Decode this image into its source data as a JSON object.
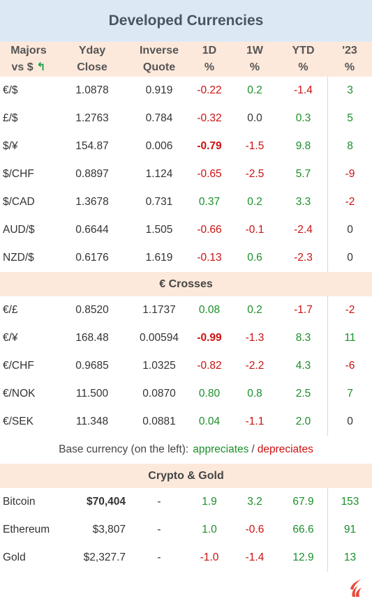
{
  "title": "Developed Currencies",
  "header": {
    "majors_line1": "Majors",
    "majors_line2": "vs $",
    "majors_arrow": "↰",
    "yday_line1": "Yday",
    "yday_line2": "Close",
    "inverse_line1": "Inverse",
    "inverse_line2": "Quote",
    "d1_line1": "1D",
    "w1_line1": "1W",
    "ytd_line1": "YTD",
    "y23_line1": "'23",
    "pct": "%"
  },
  "majors": [
    {
      "pair": "€/$",
      "close": "1.0878",
      "inverse": "0.919",
      "d1": "-0.22",
      "w1": "0.2",
      "ytd": "-1.4",
      "y23": "3"
    },
    {
      "pair": "£/$",
      "close": "1.2763",
      "inverse": "0.784",
      "d1": "-0.32",
      "w1": "0.0",
      "ytd": "0.3",
      "y23": "5"
    },
    {
      "pair": "$/¥",
      "close": "154.87",
      "inverse": "0.006",
      "d1": "-0.79",
      "w1": "-1.5",
      "ytd": "9.8",
      "y23": "8"
    },
    {
      "pair": "$/CHF",
      "close": "0.8897",
      "inverse": "1.124",
      "d1": "-0.65",
      "w1": "-2.5",
      "ytd": "5.7",
      "y23": "-9"
    },
    {
      "pair": "$/CAD",
      "close": "1.3678",
      "inverse": "0.731",
      "d1": "0.37",
      "w1": "0.2",
      "ytd": "3.3",
      "y23": "-2"
    },
    {
      "pair": "AUD/$",
      "close": "0.6644",
      "inverse": "1.505",
      "d1": "-0.66",
      "w1": "-0.1",
      "ytd": "-2.4",
      "y23": "0"
    },
    {
      "pair": "NZD/$",
      "close": "0.6176",
      "inverse": "1.619",
      "d1": "-0.13",
      "w1": "0.6",
      "ytd": "-2.3",
      "y23": "0"
    }
  ],
  "crosses_title": "€ Crosses",
  "crosses": [
    {
      "pair": "€/£",
      "close": "0.8520",
      "inverse": "1.1737",
      "d1": "0.08",
      "w1": "0.2",
      "ytd": "-1.7",
      "y23": "-2"
    },
    {
      "pair": "€/¥",
      "close": "168.48",
      "inverse": "0.00594",
      "d1": "-0.99",
      "w1": "-1.3",
      "ytd": "8.3",
      "y23": "11"
    },
    {
      "pair": "€/CHF",
      "close": "0.9685",
      "inverse": "1.0325",
      "d1": "-0.82",
      "w1": "-2.2",
      "ytd": "4.3",
      "y23": "-6"
    },
    {
      "pair": "€/NOK",
      "close": "11.500",
      "inverse": "0.0870",
      "d1": "0.80",
      "w1": "0.8",
      "ytd": "2.5",
      "y23": "7"
    },
    {
      "pair": "€/SEK",
      "close": "11.348",
      "inverse": "0.0881",
      "d1": "0.04",
      "w1": "-1.1",
      "ytd": "2.0",
      "y23": "0"
    }
  ],
  "legend": {
    "prefix": "Base currency (on the left):",
    "appreciates": "appreciates",
    "separator": "/",
    "depreciates": "depreciates"
  },
  "crypto_title": "Crypto & Gold",
  "crypto": [
    {
      "pair": "Bitcoin",
      "close": "$70,404",
      "inverse": "-",
      "d1": "1.9",
      "w1": "3.2",
      "ytd": "67.9",
      "y23": "153"
    },
    {
      "pair": "Ethereum",
      "close": "$3,807",
      "inverse": "-",
      "d1": "1.0",
      "w1": "-0.6",
      "ytd": "66.6",
      "y23": "91"
    },
    {
      "pair": "Gold",
      "close": "$2,327.7",
      "inverse": "-",
      "d1": "-1.0",
      "w1": "-1.4",
      "ytd": "12.9",
      "y23": "13"
    }
  ],
  "colors": {
    "positive": "#1a8f2a",
    "negative": "#cc1111",
    "header_bg": "#fde9dc",
    "title_bg": "#dce9f5",
    "logo": "#e8493a"
  },
  "icons": {
    "logo": "flame-logo-icon",
    "arrow": "curved-arrow-icon"
  }
}
